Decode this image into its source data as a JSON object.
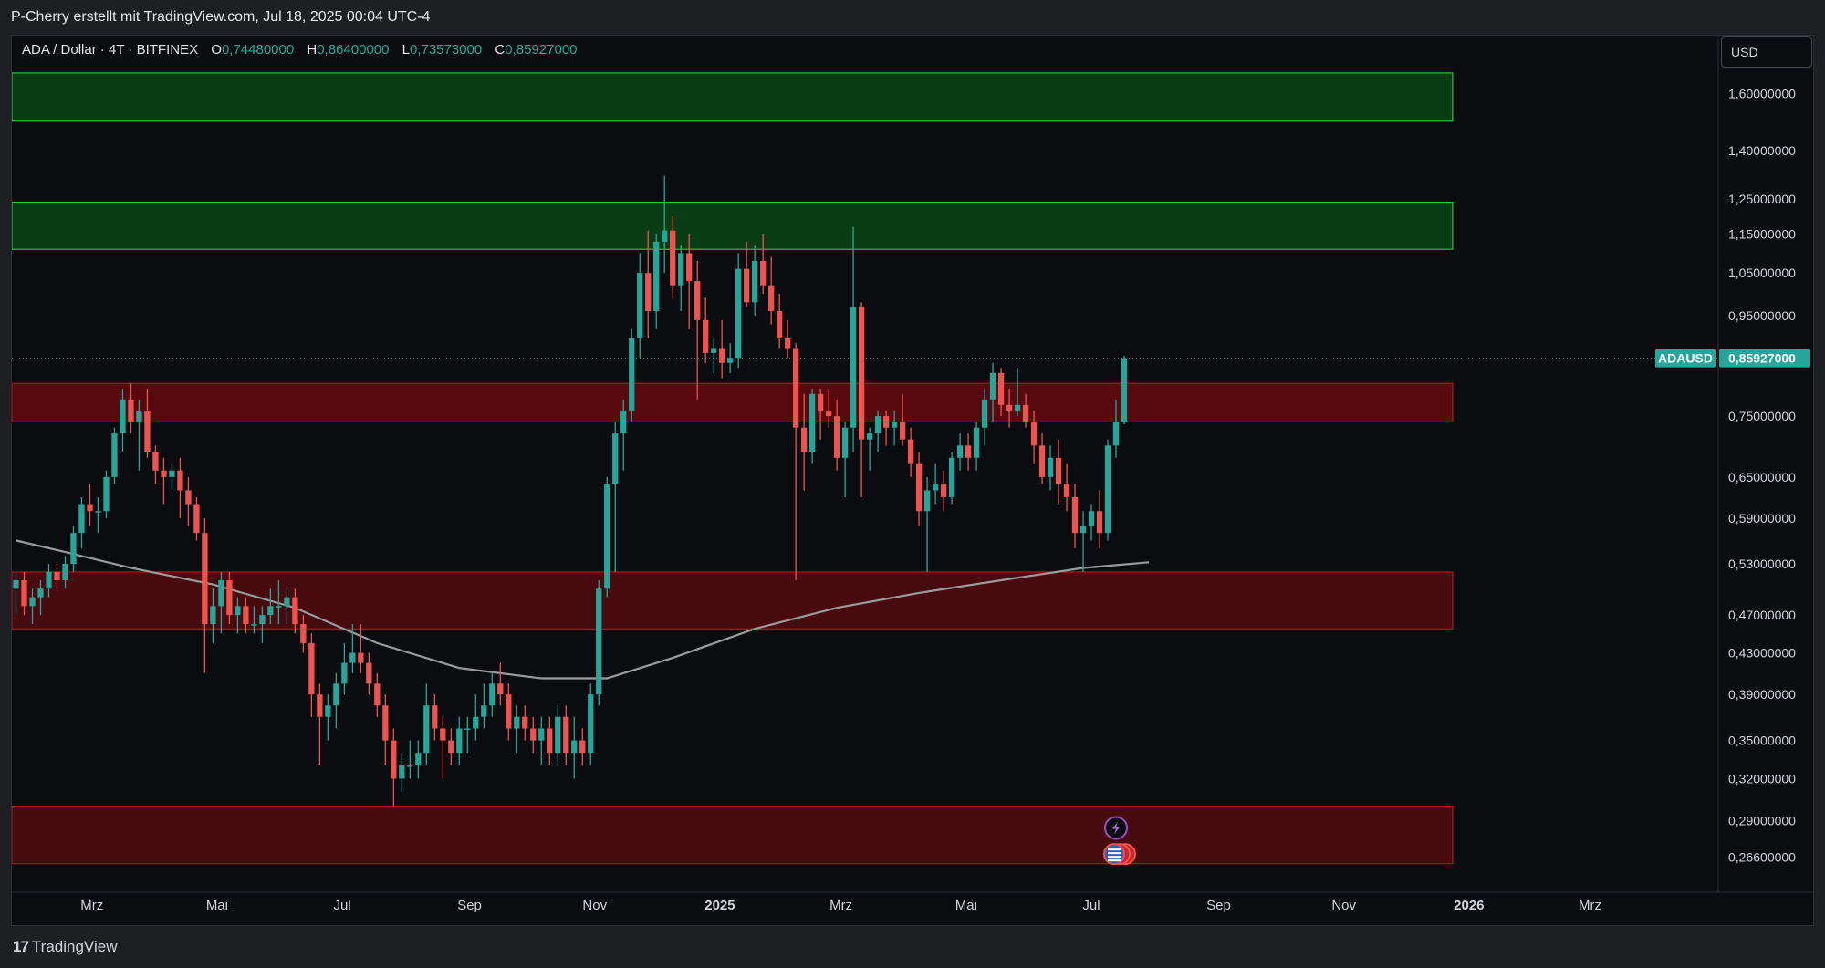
{
  "header": {
    "caption": "P-Cherry erstellt mit TradingView.com, Jul 18, 2025 00:04 UTC-4"
  },
  "symbol": {
    "title": "ADA / Dollar · 4T · BITFINEX",
    "open_label": "O",
    "open": "0,74480000",
    "high_label": "H",
    "high": "0,86400000",
    "low_label": "L",
    "low": "0,73573000",
    "close_label": "C",
    "close": "0,85927000"
  },
  "currency": "USD",
  "price_tag": {
    "ticker": "ADAUSD",
    "price": "0,85927000"
  },
  "footer": {
    "brand": "TradingView",
    "logo_glyph": "17"
  },
  "colors": {
    "up": "#26a69a",
    "down": "#ef5350",
    "background": "#0b0c10",
    "supply_zone": "#0a3d14",
    "demand_zone": "#5c0a0f",
    "ma": "#9b9b9b"
  },
  "icons": [
    "lightning-event-icon",
    "us-flag-event-icon"
  ],
  "chart_data": {
    "type": "candlestick",
    "y_scale": "log",
    "ylim": [
      0.245,
      1.83
    ],
    "y_ticks": [
      {
        "value": 1.6,
        "label": "1,60000000"
      },
      {
        "value": 1.4,
        "label": "1,40000000"
      },
      {
        "value": 1.25,
        "label": "1,25000000"
      },
      {
        "value": 1.15,
        "label": "1,15000000"
      },
      {
        "value": 1.05,
        "label": "1,05000000"
      },
      {
        "value": 0.95,
        "label": "0,95000000"
      },
      {
        "value": 0.75,
        "label": "0,75000000"
      },
      {
        "value": 0.65,
        "label": "0,65000000"
      },
      {
        "value": 0.59,
        "label": "0,59000000"
      },
      {
        "value": 0.53,
        "label": "0,53000000"
      },
      {
        "value": 0.47,
        "label": "0,47000000"
      },
      {
        "value": 0.43,
        "label": "0,43000000"
      },
      {
        "value": 0.39,
        "label": "0,39000000"
      },
      {
        "value": 0.35,
        "label": "0,35000000"
      },
      {
        "value": 0.32,
        "label": "0,32000000"
      },
      {
        "value": 0.29,
        "label": "0,29000000"
      },
      {
        "value": 0.266,
        "label": "0,26600000"
      }
    ],
    "x_range": [
      "2024-01-22",
      "2026-05-02"
    ],
    "x_ticks": [
      {
        "date": "2024-03-01",
        "label": "Mrz",
        "bold": false
      },
      {
        "date": "2024-05-01",
        "label": "Mai",
        "bold": false
      },
      {
        "date": "2024-07-01",
        "label": "Jul",
        "bold": false
      },
      {
        "date": "2024-09-01",
        "label": "Sep",
        "bold": false
      },
      {
        "date": "2024-11-01",
        "label": "Nov",
        "bold": false
      },
      {
        "date": "2025-01-01",
        "label": "2025",
        "bold": true
      },
      {
        "date": "2025-03-01",
        "label": "Mrz",
        "bold": false
      },
      {
        "date": "2025-05-01",
        "label": "Mai",
        "bold": false
      },
      {
        "date": "2025-07-01",
        "label": "Jul",
        "bold": false
      },
      {
        "date": "2025-09-01",
        "label": "Sep",
        "bold": false
      },
      {
        "date": "2025-11-01",
        "label": "Nov",
        "bold": false
      },
      {
        "date": "2026-01-01",
        "label": "2026",
        "bold": true
      },
      {
        "date": "2026-03-01",
        "label": "Mrz",
        "bold": false
      }
    ],
    "zones": [
      {
        "kind": "supply",
        "low": 1.5,
        "high": 1.68,
        "start": "2024-01-22",
        "end": "2025-12-24"
      },
      {
        "kind": "supply",
        "low": 1.11,
        "high": 1.24,
        "start": "2024-01-22",
        "end": "2025-12-24"
      },
      {
        "kind": "demand",
        "low": 0.74,
        "high": 0.81,
        "start": "2024-01-22",
        "end": "2025-12-24"
      },
      {
        "kind": "demand",
        "low": 0.455,
        "high": 0.52,
        "start": "2024-01-22",
        "end": "2025-12-24"
      },
      {
        "kind": "demand",
        "low": 0.262,
        "high": 0.3,
        "start": "2024-01-22",
        "end": "2025-12-24"
      }
    ],
    "last_price": 0.85927,
    "candle_interval_days": 4,
    "candles_start": "2024-01-22",
    "candles": [
      [
        0.5,
        0.52,
        0.47,
        0.51
      ],
      [
        0.51,
        0.52,
        0.47,
        0.48
      ],
      [
        0.48,
        0.5,
        0.46,
        0.49
      ],
      [
        0.49,
        0.51,
        0.47,
        0.5
      ],
      [
        0.5,
        0.53,
        0.49,
        0.52
      ],
      [
        0.52,
        0.53,
        0.5,
        0.51
      ],
      [
        0.51,
        0.54,
        0.5,
        0.53
      ],
      [
        0.53,
        0.58,
        0.52,
        0.57
      ],
      [
        0.57,
        0.62,
        0.55,
        0.61
      ],
      [
        0.61,
        0.64,
        0.58,
        0.6
      ],
      [
        0.6,
        0.62,
        0.57,
        0.6
      ],
      [
        0.6,
        0.66,
        0.59,
        0.65
      ],
      [
        0.65,
        0.73,
        0.64,
        0.72
      ],
      [
        0.72,
        0.8,
        0.69,
        0.78
      ],
      [
        0.78,
        0.81,
        0.72,
        0.74
      ],
      [
        0.74,
        0.78,
        0.66,
        0.76
      ],
      [
        0.76,
        0.8,
        0.68,
        0.69
      ],
      [
        0.69,
        0.7,
        0.64,
        0.66
      ],
      [
        0.66,
        0.68,
        0.61,
        0.65
      ],
      [
        0.65,
        0.67,
        0.63,
        0.66
      ],
      [
        0.66,
        0.68,
        0.59,
        0.63
      ],
      [
        0.63,
        0.65,
        0.58,
        0.61
      ],
      [
        0.61,
        0.62,
        0.56,
        0.57
      ],
      [
        0.57,
        0.59,
        0.41,
        0.46
      ],
      [
        0.46,
        0.5,
        0.44,
        0.48
      ],
      [
        0.48,
        0.52,
        0.45,
        0.51
      ],
      [
        0.51,
        0.52,
        0.46,
        0.47
      ],
      [
        0.47,
        0.49,
        0.45,
        0.48
      ],
      [
        0.48,
        0.49,
        0.45,
        0.46
      ],
      [
        0.46,
        0.48,
        0.45,
        0.46
      ],
      [
        0.46,
        0.48,
        0.44,
        0.47
      ],
      [
        0.47,
        0.5,
        0.46,
        0.48
      ],
      [
        0.48,
        0.51,
        0.46,
        0.48
      ],
      [
        0.48,
        0.5,
        0.46,
        0.49
      ],
      [
        0.49,
        0.5,
        0.45,
        0.46
      ],
      [
        0.46,
        0.47,
        0.43,
        0.44
      ],
      [
        0.44,
        0.45,
        0.37,
        0.39
      ],
      [
        0.39,
        0.4,
        0.33,
        0.37
      ],
      [
        0.37,
        0.39,
        0.35,
        0.38
      ],
      [
        0.38,
        0.41,
        0.36,
        0.4
      ],
      [
        0.4,
        0.44,
        0.39,
        0.42
      ],
      [
        0.42,
        0.46,
        0.41,
        0.43
      ],
      [
        0.43,
        0.46,
        0.41,
        0.42
      ],
      [
        0.42,
        0.43,
        0.39,
        0.4
      ],
      [
        0.4,
        0.41,
        0.37,
        0.38
      ],
      [
        0.38,
        0.39,
        0.33,
        0.35
      ],
      [
        0.35,
        0.36,
        0.3,
        0.32
      ],
      [
        0.32,
        0.34,
        0.31,
        0.33
      ],
      [
        0.33,
        0.35,
        0.32,
        0.33
      ],
      [
        0.33,
        0.35,
        0.32,
        0.34
      ],
      [
        0.34,
        0.4,
        0.33,
        0.38
      ],
      [
        0.38,
        0.39,
        0.35,
        0.36
      ],
      [
        0.36,
        0.37,
        0.32,
        0.35
      ],
      [
        0.35,
        0.36,
        0.33,
        0.34
      ],
      [
        0.34,
        0.37,
        0.33,
        0.36
      ],
      [
        0.36,
        0.37,
        0.34,
        0.36
      ],
      [
        0.36,
        0.39,
        0.35,
        0.37
      ],
      [
        0.37,
        0.4,
        0.36,
        0.38
      ],
      [
        0.38,
        0.41,
        0.37,
        0.4
      ],
      [
        0.4,
        0.42,
        0.38,
        0.39
      ],
      [
        0.39,
        0.4,
        0.35,
        0.36
      ],
      [
        0.36,
        0.38,
        0.34,
        0.37
      ],
      [
        0.37,
        0.38,
        0.35,
        0.36
      ],
      [
        0.36,
        0.37,
        0.34,
        0.35
      ],
      [
        0.35,
        0.37,
        0.33,
        0.36
      ],
      [
        0.36,
        0.37,
        0.33,
        0.34
      ],
      [
        0.34,
        0.38,
        0.33,
        0.37
      ],
      [
        0.37,
        0.38,
        0.33,
        0.34
      ],
      [
        0.34,
        0.37,
        0.32,
        0.35
      ],
      [
        0.35,
        0.36,
        0.33,
        0.34
      ],
      [
        0.34,
        0.4,
        0.33,
        0.39
      ],
      [
        0.39,
        0.51,
        0.38,
        0.5
      ],
      [
        0.5,
        0.65,
        0.49,
        0.64
      ],
      [
        0.64,
        0.74,
        0.52,
        0.72
      ],
      [
        0.72,
        0.78,
        0.66,
        0.76
      ],
      [
        0.76,
        0.92,
        0.74,
        0.9
      ],
      [
        0.9,
        1.1,
        0.86,
        1.05
      ],
      [
        1.05,
        1.16,
        0.9,
        0.96
      ],
      [
        0.96,
        1.15,
        0.92,
        1.13
      ],
      [
        1.13,
        1.32,
        1.05,
        1.16
      ],
      [
        1.16,
        1.2,
        0.99,
        1.02
      ],
      [
        1.02,
        1.12,
        0.96,
        1.1
      ],
      [
        1.1,
        1.15,
        0.92,
        1.03
      ],
      [
        1.03,
        1.08,
        0.78,
        0.94
      ],
      [
        0.94,
        0.99,
        0.85,
        0.87
      ],
      [
        0.87,
        0.9,
        0.83,
        0.88
      ],
      [
        0.88,
        0.94,
        0.82,
        0.85
      ],
      [
        0.85,
        0.89,
        0.83,
        0.86
      ],
      [
        0.86,
        1.1,
        0.84,
        1.06
      ],
      [
        1.06,
        1.13,
        0.97,
        0.98
      ],
      [
        0.98,
        1.12,
        0.95,
        1.08
      ],
      [
        1.08,
        1.15,
        1.0,
        1.02
      ],
      [
        1.02,
        1.09,
        0.93,
        0.96
      ],
      [
        0.96,
        1.0,
        0.88,
        0.9
      ],
      [
        0.9,
        0.94,
        0.86,
        0.88
      ],
      [
        0.88,
        0.89,
        0.51,
        0.73
      ],
      [
        0.73,
        0.79,
        0.63,
        0.69
      ],
      [
        0.69,
        0.8,
        0.67,
        0.79
      ],
      [
        0.79,
        0.8,
        0.71,
        0.76
      ],
      [
        0.76,
        0.8,
        0.73,
        0.75
      ],
      [
        0.75,
        0.78,
        0.66,
        0.68
      ],
      [
        0.68,
        0.74,
        0.62,
        0.73
      ],
      [
        0.73,
        1.17,
        0.69,
        0.97
      ],
      [
        0.97,
        0.98,
        0.62,
        0.71
      ],
      [
        0.71,
        0.73,
        0.66,
        0.72
      ],
      [
        0.72,
        0.76,
        0.69,
        0.75
      ],
      [
        0.75,
        0.76,
        0.7,
        0.73
      ],
      [
        0.73,
        0.76,
        0.7,
        0.74
      ],
      [
        0.74,
        0.79,
        0.7,
        0.71
      ],
      [
        0.71,
        0.73,
        0.65,
        0.67
      ],
      [
        0.67,
        0.69,
        0.58,
        0.6
      ],
      [
        0.6,
        0.65,
        0.52,
        0.63
      ],
      [
        0.63,
        0.67,
        0.61,
        0.64
      ],
      [
        0.64,
        0.66,
        0.6,
        0.62
      ],
      [
        0.62,
        0.69,
        0.61,
        0.68
      ],
      [
        0.68,
        0.72,
        0.66,
        0.7
      ],
      [
        0.7,
        0.72,
        0.66,
        0.68
      ],
      [
        0.68,
        0.74,
        0.66,
        0.73
      ],
      [
        0.73,
        0.8,
        0.7,
        0.78
      ],
      [
        0.78,
        0.85,
        0.74,
        0.83
      ],
      [
        0.83,
        0.84,
        0.75,
        0.77
      ],
      [
        0.77,
        0.8,
        0.73,
        0.76
      ],
      [
        0.76,
        0.84,
        0.75,
        0.77
      ],
      [
        0.77,
        0.79,
        0.73,
        0.74
      ],
      [
        0.74,
        0.76,
        0.67,
        0.7
      ],
      [
        0.7,
        0.72,
        0.64,
        0.65
      ],
      [
        0.65,
        0.7,
        0.63,
        0.68
      ],
      [
        0.68,
        0.71,
        0.61,
        0.64
      ],
      [
        0.64,
        0.67,
        0.6,
        0.62
      ],
      [
        0.62,
        0.64,
        0.55,
        0.57
      ],
      [
        0.57,
        0.6,
        0.52,
        0.58
      ],
      [
        0.58,
        0.61,
        0.56,
        0.6
      ],
      [
        0.6,
        0.63,
        0.55,
        0.57
      ],
      [
        0.57,
        0.71,
        0.56,
        0.7
      ],
      [
        0.7,
        0.78,
        0.68,
        0.74
      ],
      [
        0.74,
        0.864,
        0.73573,
        0.85927
      ]
    ],
    "ma_series": [
      [
        0,
        0.56
      ],
      [
        6,
        0.545
      ],
      [
        14,
        0.525
      ],
      [
        24,
        0.505
      ],
      [
        34,
        0.478
      ],
      [
        44,
        0.44
      ],
      [
        54,
        0.415
      ],
      [
        64,
        0.405
      ],
      [
        72,
        0.405
      ],
      [
        80,
        0.425
      ],
      [
        90,
        0.455
      ],
      [
        100,
        0.478
      ],
      [
        110,
        0.495
      ],
      [
        120,
        0.51
      ],
      [
        130,
        0.525
      ],
      [
        138,
        0.532
      ]
    ],
    "ma_start": "2024-01-22",
    "event_markers": [
      {
        "date": "2025-07-13",
        "icon": "lightning-event-icon",
        "price": 0.285
      },
      {
        "date": "2025-07-13",
        "icon": "us-flag-event-icon",
        "price": 0.268
      }
    ]
  }
}
